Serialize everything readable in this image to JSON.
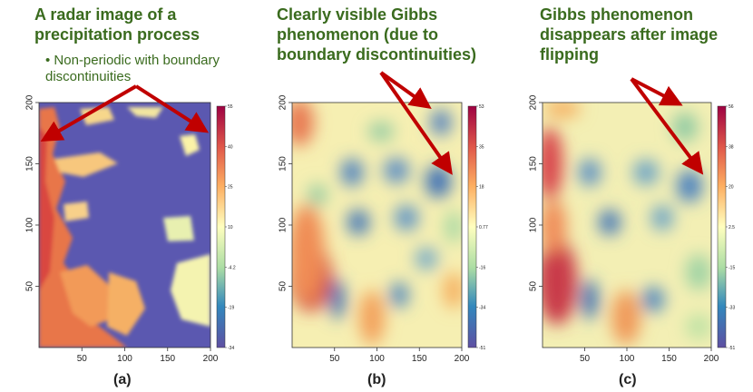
{
  "panels": [
    {
      "id": "a",
      "title": "A radar image of a precipitation process",
      "bullet": "Non-periodic with boundary discontinuities",
      "label": "(a)",
      "colorbar": [
        "55",
        "40",
        "25",
        "10",
        "-4.2",
        "-19",
        "-34"
      ]
    },
    {
      "id": "b",
      "title": "Clearly visible Gibbs phenomenon (due to boundary discontinuities)",
      "label": "(b)",
      "colorbar": [
        "53",
        "35",
        "18",
        "0.77",
        "-16",
        "-34",
        "-51"
      ]
    },
    {
      "id": "c",
      "title": "Gibbs phenomenon disappears after image flipping",
      "label": "(c)",
      "colorbar": [
        "56",
        "38",
        "20",
        "2.5",
        "-15",
        "-33",
        "-51"
      ]
    }
  ],
  "axes": {
    "x_ticks": [
      "50",
      "100",
      "150",
      "200"
    ],
    "y_ticks": [
      "50",
      "100",
      "150",
      "200"
    ]
  },
  "colors": {
    "title_green": "#3a6b1e",
    "arrow_red": "#c00000"
  }
}
